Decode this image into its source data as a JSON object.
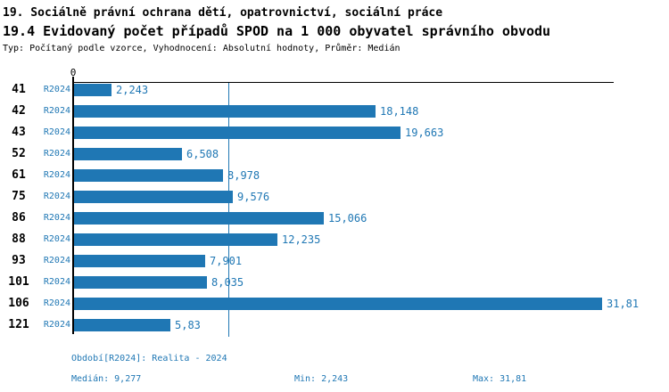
{
  "header": {
    "title1": "19. Sociálně právní ochrana dětí, opatrovnictví, sociální práce",
    "title2": "19.4 Evidovaný počet případů SPOD na 1 000 obyvatel správního obvodu",
    "subtitle": "Typ: Počítaný podle vzorce, Vyhodnocení: Absolutní hodnoty, Průměr: Medián"
  },
  "chart_data": {
    "type": "bar",
    "orientation": "horizontal",
    "title": "19.4 Evidovaný počet případů SPOD na 1 000 obyvatel správního obvodu",
    "categories": [
      "41",
      "42",
      "43",
      "52",
      "61",
      "75",
      "86",
      "88",
      "93",
      "101",
      "106",
      "121"
    ],
    "series_label": "R2024",
    "values": [
      2.243,
      18.148,
      19.663,
      6.508,
      8.978,
      9.576,
      15.066,
      12.235,
      7.901,
      8.035,
      31.81,
      5.83
    ],
    "value_labels": [
      "2,243",
      "18,148",
      "19,663",
      "6,508",
      "8,978",
      "9,576",
      "15,066",
      "12,235",
      "7,901",
      "8,035",
      "31,81",
      "5,83"
    ],
    "zero_label": "0",
    "median_value": 9.277,
    "xlim": [
      0,
      32.5
    ],
    "grid": false,
    "legend": false
  },
  "footer": {
    "period": "Období[R2024]: Realita - 2024",
    "median": "Medián: 9,277",
    "min": "Min: 2,243",
    "max": "Max: 31,81"
  },
  "colors": {
    "bar": "#1f77b4",
    "accent_text": "#1f77b4",
    "median_line": "#1f77b4",
    "axis": "#000000"
  }
}
